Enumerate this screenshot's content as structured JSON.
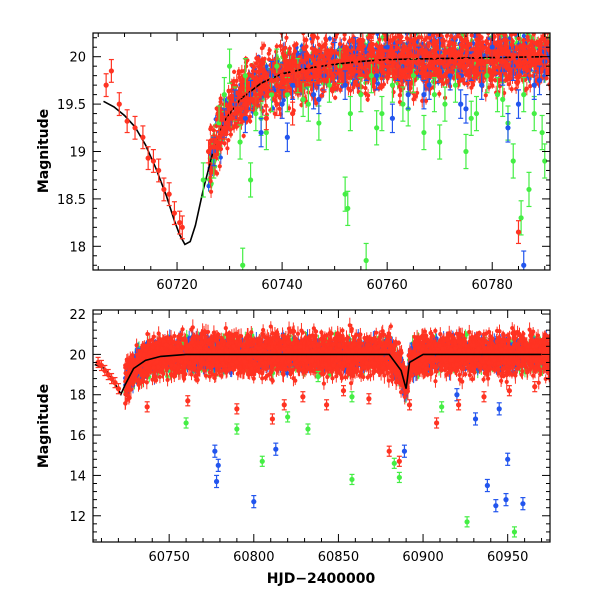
{
  "chart_data": [
    {
      "id": "top",
      "type": "scatter",
      "title": "",
      "xlabel": "",
      "ylabel": "Magnitude",
      "xlim": [
        60704,
        60791
      ],
      "ylim": [
        20.25,
        17.75
      ],
      "y_inverted": true,
      "xticks": [
        60720,
        60740,
        60760,
        60780
      ],
      "xtick_labels": [
        "60720",
        "60740",
        "60760",
        "60780"
      ],
      "yticks": [
        18,
        18.5,
        19,
        19.5,
        20
      ],
      "ytick_labels": [
        "18",
        "18.5",
        "19",
        "19.5",
        "20"
      ],
      "colors": {
        "green": "#44ee44",
        "blue": "#2255ee",
        "red": "#ff3322",
        "model": "#000000"
      },
      "model_curve": {
        "x": [
          60706,
          60708,
          60710,
          60712,
          60714,
          60716,
          60718,
          60719.5,
          60720.5,
          60721.5,
          60722.5,
          60723.5,
          60725,
          60727,
          60729,
          60732,
          60736,
          60740,
          60745,
          60750,
          60755,
          60760,
          60770,
          60780,
          60790
        ],
        "y": [
          19.53,
          19.47,
          19.38,
          19.26,
          19.07,
          18.82,
          18.53,
          18.27,
          18.12,
          18.02,
          18.05,
          18.22,
          18.6,
          19.03,
          19.32,
          19.55,
          19.72,
          19.82,
          19.88,
          19.92,
          19.95,
          19.97,
          19.98,
          19.99,
          20.0
        ]
      },
      "series": [
        {
          "name": "red",
          "x": [
            60706.5,
            60707.5,
            60709,
            60710.5,
            60712,
            60713.5,
            60714.5,
            60715.5,
            60716.5,
            60717.5,
            60718.5,
            60719.5,
            60720.5,
            60721,
            60726,
            60727,
            60727.5,
            60728,
            60728.5,
            60729,
            60729.5,
            60730,
            60730.5,
            60731,
            60731.5,
            60732,
            60733,
            60733.5,
            60734,
            60735,
            60736,
            60737,
            60738,
            60739,
            60740,
            60741,
            60742,
            60743,
            60744,
            60745,
            60746,
            60747,
            60748,
            60749,
            60750,
            60751,
            60752,
            60753,
            60754,
            60755,
            60756,
            60757,
            60758,
            60759,
            60760,
            60761,
            60762,
            60763,
            60764,
            60765,
            60766,
            60767,
            60768,
            60769,
            60770,
            60771,
            60772,
            60773,
            60774,
            60775,
            60776,
            60777,
            60778,
            60779,
            60780,
            60781,
            60782,
            60783,
            60784,
            60785,
            60786,
            60787,
            60788,
            60789,
            60790,
            60737,
            60739,
            60742,
            60748,
            60761,
            60770,
            60780,
            60785
          ],
          "y": [
            19.7,
            19.85,
            19.5,
            19.32,
            19.25,
            19.15,
            18.93,
            18.9,
            18.8,
            18.6,
            18.55,
            18.35,
            18.25,
            18.2,
            19.0,
            19.05,
            19.1,
            19.15,
            19.2,
            19.25,
            19.3,
            19.35,
            19.35,
            19.4,
            19.45,
            19.45,
            19.5,
            19.55,
            19.55,
            19.6,
            19.65,
            19.7,
            19.75,
            19.7,
            19.8,
            19.75,
            19.85,
            19.8,
            19.85,
            19.9,
            19.85,
            19.9,
            19.95,
            19.9,
            19.95,
            19.85,
            20.0,
            19.9,
            19.95,
            20.0,
            19.9,
            20.05,
            19.95,
            20.0,
            19.95,
            20.0,
            19.9,
            20.05,
            19.95,
            20.0,
            19.95,
            20.05,
            19.9,
            20.0,
            19.95,
            20.05,
            19.95,
            20.0,
            19.95,
            20.1,
            19.9,
            20.0,
            19.95,
            20.05,
            19.95,
            20.0,
            19.95,
            20.05,
            20.0,
            19.9,
            20.05,
            20.0,
            19.95,
            20.05,
            20.0,
            19.35,
            19.5,
            19.4,
            19.75,
            19.9,
            19.85,
            19.8,
            18.15
          ],
          "err": 0.12
        },
        {
          "name": "green",
          "x": [
            60725,
            60727,
            60728,
            60729,
            60730,
            60731,
            60732,
            60733,
            60734,
            60735,
            60737,
            60738,
            60739,
            60741,
            60743,
            60745,
            60747,
            60749,
            60751,
            60752,
            60753,
            60755,
            60757,
            60759,
            60761,
            60763,
            60765,
            60767,
            60769,
            60771,
            60773,
            60775,
            60777,
            60779,
            60781,
            60783,
            60784,
            60786,
            60788,
            60790,
            60732.5,
            60752.5,
            60756,
            60770,
            60785.5,
            60787,
            60789.5,
            60736,
            60744,
            60758,
            60764,
            60776,
            60782
          ],
          "y": [
            18.7,
            18.9,
            19.3,
            19.6,
            19.9,
            19.5,
            19.1,
            19.8,
            18.7,
            19.4,
            19.2,
            19.6,
            19.9,
            19.6,
            19.8,
            19.5,
            19.3,
            19.7,
            19.9,
            18.55,
            19.4,
            19.6,
            19.8,
            19.4,
            19.7,
            19.5,
            19.8,
            19.2,
            19.6,
            19.5,
            19.7,
            19.0,
            19.4,
            19.8,
            19.6,
            19.3,
            18.9,
            19.6,
            19.4,
            18.9,
            17.8,
            18.4,
            17.85,
            19.1,
            18.3,
            18.6,
            19.2,
            19.35,
            19.55,
            19.25,
            19.45,
            19.35,
            19.55
          ],
          "err": 0.18
        },
        {
          "name": "blue",
          "x": [
            60727,
            60729,
            60731,
            60733,
            60734,
            60736,
            60738,
            60740,
            60742,
            60744,
            60746,
            60748,
            60750,
            60752,
            60754,
            60756,
            60758,
            60760,
            60762,
            60764,
            60766,
            60768,
            60770,
            60772,
            60774,
            60776,
            60778,
            60780,
            60782,
            60784,
            60786,
            60788,
            60790,
            60741,
            60747,
            60761,
            60767,
            60775,
            60783,
            60785,
            60789
          ],
          "y": [
            19.0,
            19.3,
            19.5,
            19.35,
            19.6,
            19.2,
            19.8,
            19.5,
            19.7,
            19.9,
            19.6,
            19.8,
            20.0,
            19.7,
            20.05,
            19.9,
            19.8,
            20.1,
            19.9,
            19.6,
            19.95,
            19.7,
            20.05,
            19.8,
            19.5,
            19.9,
            19.7,
            20.1,
            19.85,
            19.9,
            17.8,
            19.7,
            19.95,
            19.15,
            19.55,
            19.35,
            19.6,
            19.45,
            19.25,
            19.5,
            19.75
          ],
          "err": 0.15
        }
      ]
    },
    {
      "id": "bottom",
      "type": "scatter",
      "title": "",
      "xlabel": "HJD−2400000",
      "ylabel": "Magnitude",
      "xlim": [
        60705,
        60975
      ],
      "ylim": [
        22.2,
        10.7
      ],
      "y_inverted": true,
      "xticks": [
        60750,
        60800,
        60850,
        60900,
        60950
      ],
      "xtick_labels": [
        "60750",
        "60800",
        "60850",
        "60900",
        "60950"
      ],
      "yticks": [
        12,
        14,
        16,
        18,
        20,
        22
      ],
      "ytick_labels": [
        "12",
        "14",
        "16",
        "18",
        "20",
        "22"
      ],
      "colors": {
        "green": "#44ee44",
        "blue": "#2255ee",
        "red": "#ff3322",
        "model": "#000000"
      },
      "model_curve": {
        "x": [
          60706,
          60712,
          60716,
          60719,
          60721.5,
          60724,
          60729,
          60736,
          60745,
          60760,
          60790,
          60830,
          60880,
          60887,
          60890,
          60892,
          60900,
          60940,
          60970
        ],
        "y": [
          19.5,
          19.3,
          18.8,
          18.4,
          18.02,
          18.5,
          19.3,
          19.7,
          19.9,
          20.0,
          20.0,
          20.0,
          20.0,
          19.2,
          18.3,
          19.6,
          20.0,
          20.0,
          20.0
        ]
      },
      "series": [
        {
          "name": "red",
          "x": [
            60708,
            60710,
            60712,
            60714,
            60716,
            60718,
            60720,
            60737,
            60761,
            60790,
            60811,
            60818,
            60829,
            60843,
            60853,
            60868,
            60880,
            60886,
            60892,
            60908,
            60921,
            60936,
            60951,
            60966
          ],
          "y": [
            19.6,
            19.45,
            19.2,
            19.0,
            18.8,
            18.6,
            18.3,
            17.4,
            17.7,
            17.3,
            16.8,
            17.5,
            17.9,
            17.5,
            18.2,
            17.8,
            15.2,
            14.7,
            17.5,
            16.6,
            17.5,
            17.9,
            18.2,
            18.4
          ],
          "err": 0.25
        },
        {
          "name": "green",
          "x": [
            60760,
            60790,
            60805,
            60820,
            60858,
            60883,
            60886,
            60926,
            60954,
            60858,
            60911,
            60832,
            60838
          ],
          "y": [
            16.6,
            16.3,
            14.7,
            16.9,
            13.8,
            14.6,
            13.9,
            11.7,
            11.2,
            17.9,
            17.4,
            16.3,
            18.9
          ],
          "err": 0.25
        },
        {
          "name": "blue",
          "x": [
            60800,
            60777,
            60779,
            60778,
            60813,
            60889,
            60938,
            60943,
            60949,
            60950,
            60959,
            60920,
            60931,
            60945
          ],
          "y": [
            12.7,
            15.2,
            14.5,
            13.7,
            15.3,
            15.2,
            13.5,
            12.5,
            12.8,
            14.8,
            12.6,
            18.0,
            16.8,
            17.3
          ],
          "err": 0.3
        }
      ]
    }
  ]
}
